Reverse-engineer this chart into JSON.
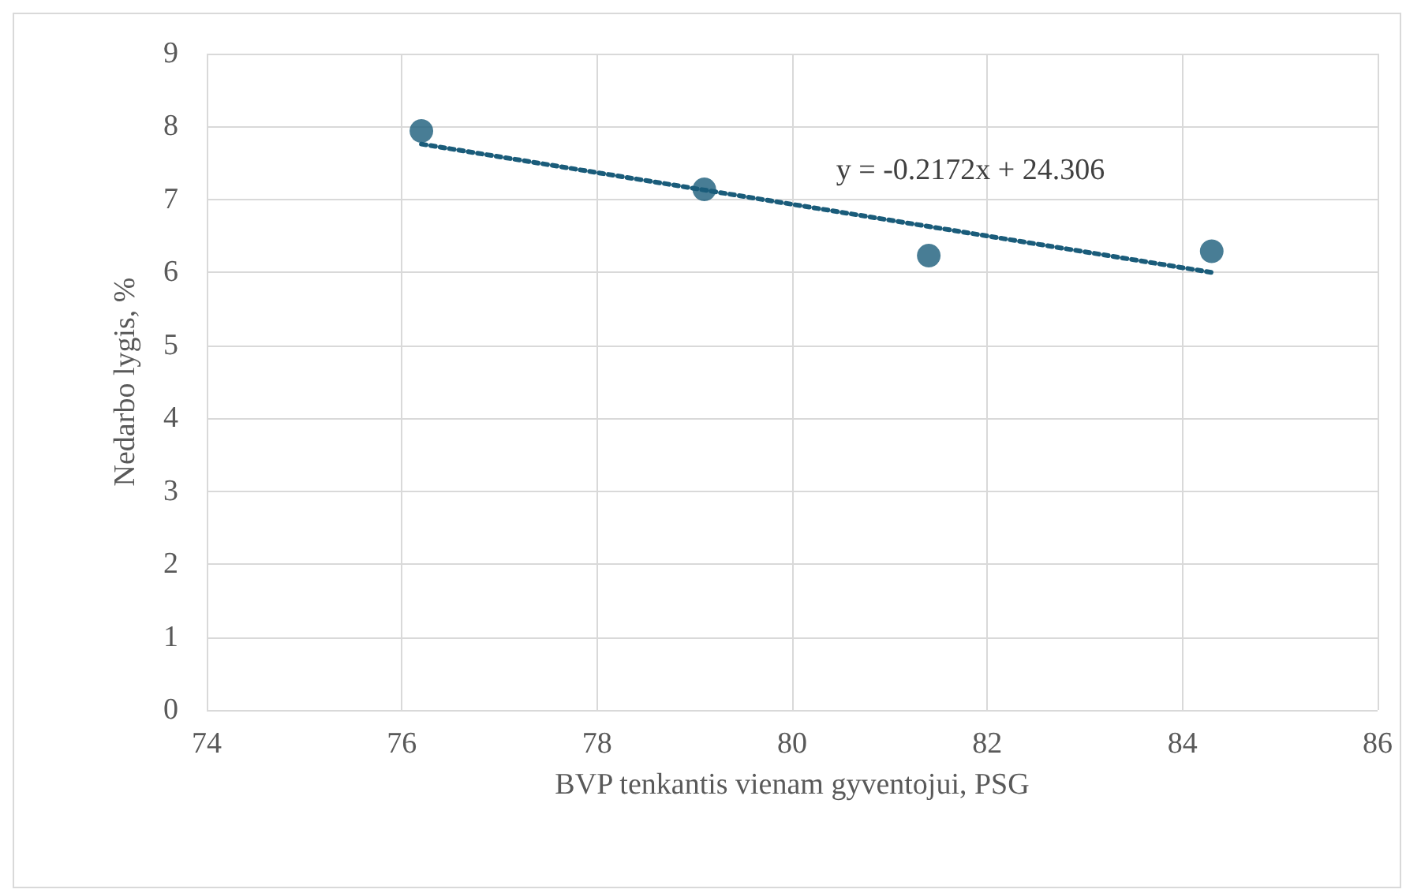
{
  "chart_data": {
    "type": "scatter",
    "xlabel": "BVP tenkantis vienam gyventojui, PSG",
    "ylabel": "Nedarbo lygis, %",
    "x": [
      76.2,
      79.1,
      81.4,
      84.3
    ],
    "series": [
      {
        "color": "#1a5c7a",
        "values": [
          7.94,
          7.14,
          6.23,
          6.29
        ],
        "marker": "circle"
      },
      {
        "type": "line",
        "color": "#1a5c7a",
        "x": [
          76.2,
          84.3
        ],
        "values": [
          7.76,
          6.0
        ],
        "line_style": "dotted",
        "marker": "none"
      }
    ],
    "xlim": [
      74,
      86
    ],
    "xticks": [
      74,
      76,
      78,
      80,
      82,
      84,
      86
    ],
    "ylim": [
      0,
      9
    ],
    "yticks": [
      0,
      1,
      2,
      3,
      4,
      5,
      6,
      7,
      8,
      9
    ],
    "grid": true,
    "annotations": [
      "y = -0.2172x + 24.306"
    ]
  }
}
